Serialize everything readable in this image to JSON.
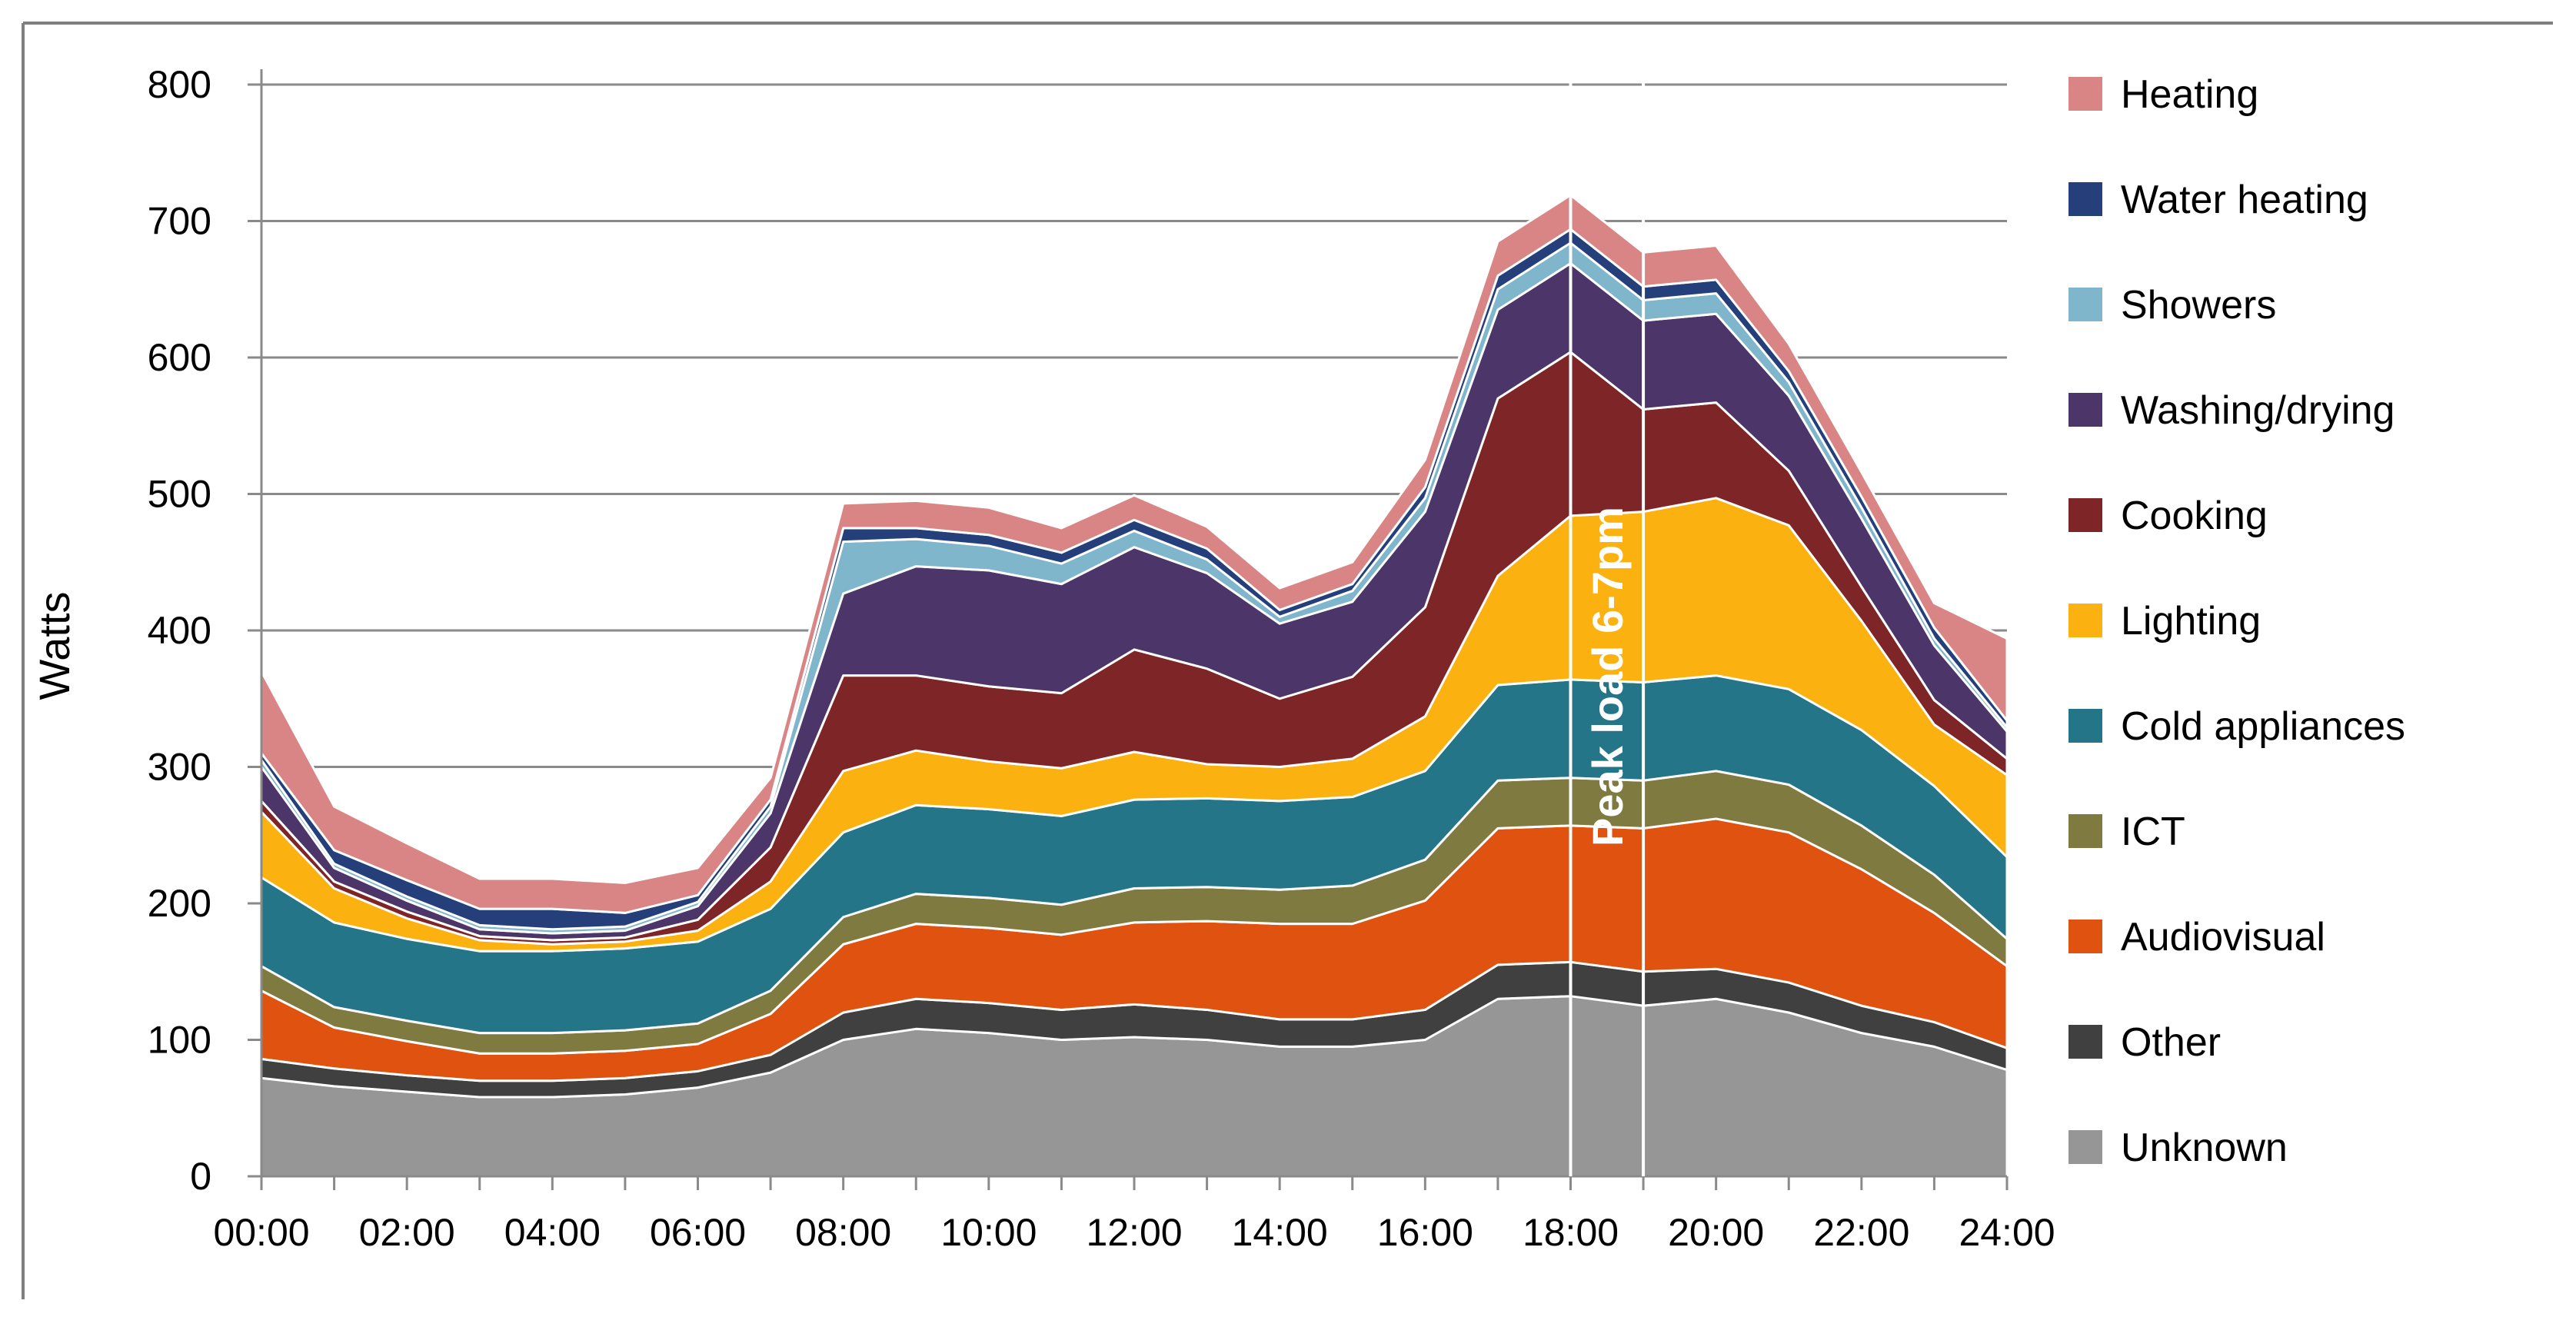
{
  "chart_data": {
    "type": "area",
    "stacked": true,
    "ylabel": "Watts",
    "xlabel": "",
    "ylim": [
      0,
      800
    ],
    "y_ticks": [
      0,
      100,
      200,
      300,
      400,
      500,
      600,
      700,
      800
    ],
    "x_tick_labels": [
      "00:00",
      "02:00",
      "04:00",
      "06:00",
      "08:00",
      "10:00",
      "12:00",
      "14:00",
      "16:00",
      "18:00",
      "20:00",
      "22:00",
      "24:00"
    ],
    "x_hours": [
      0,
      1,
      2,
      3,
      4,
      5,
      6,
      7,
      8,
      9,
      10,
      11,
      12,
      13,
      14,
      15,
      16,
      17,
      18,
      19,
      20,
      21,
      22,
      23,
      24
    ],
    "grid": "horizontal",
    "legend_position": "right",
    "annotation": "Peak load 6-7pm",
    "peak_band_hours": [
      18,
      19
    ],
    "series": [
      {
        "name": "Unknown",
        "color": "#969696",
        "values": [
          72,
          66,
          62,
          58,
          58,
          60,
          65,
          76,
          100,
          108,
          105,
          100,
          102,
          100,
          95,
          95,
          100,
          130,
          132,
          125,
          130,
          120,
          105,
          95,
          78
        ]
      },
      {
        "name": "Other",
        "color": "#404040",
        "values": [
          14,
          13,
          12,
          12,
          12,
          12,
          12,
          13,
          20,
          22,
          22,
          22,
          24,
          22,
          20,
          20,
          22,
          25,
          25,
          25,
          22,
          22,
          20,
          18,
          16
        ]
      },
      {
        "name": "Audiovisual",
        "color": "#E0520F",
        "values": [
          50,
          30,
          25,
          20,
          20,
          20,
          20,
          30,
          50,
          55,
          55,
          55,
          60,
          65,
          70,
          70,
          80,
          100,
          100,
          105,
          110,
          110,
          100,
          80,
          60
        ]
      },
      {
        "name": "ICT",
        "color": "#7F7A40",
        "values": [
          18,
          15,
          15,
          15,
          15,
          15,
          15,
          17,
          20,
          22,
          22,
          22,
          25,
          25,
          25,
          28,
          30,
          35,
          35,
          35,
          35,
          35,
          32,
          28,
          20
        ]
      },
      {
        "name": "Cold appliances",
        "color": "#257588",
        "values": [
          65,
          62,
          60,
          60,
          60,
          60,
          60,
          60,
          62,
          65,
          65,
          65,
          65,
          65,
          65,
          65,
          65,
          70,
          72,
          72,
          70,
          70,
          70,
          65,
          60
        ]
      },
      {
        "name": "Lighting",
        "color": "#FBB10F",
        "values": [
          48,
          25,
          15,
          8,
          5,
          5,
          8,
          20,
          45,
          40,
          35,
          35,
          35,
          25,
          25,
          28,
          40,
          80,
          120,
          125,
          130,
          120,
          80,
          45,
          60
        ]
      },
      {
        "name": "Cooking",
        "color": "#7E2527",
        "values": [
          8,
          5,
          5,
          3,
          3,
          3,
          8,
          25,
          70,
          55,
          55,
          55,
          75,
          70,
          50,
          60,
          80,
          130,
          120,
          75,
          70,
          40,
          25,
          18,
          12
        ]
      },
      {
        "name": "Washing/drying",
        "color": "#4C3568",
        "values": [
          25,
          10,
          8,
          5,
          5,
          5,
          10,
          25,
          60,
          80,
          85,
          80,
          75,
          70,
          55,
          55,
          70,
          65,
          65,
          65,
          65,
          55,
          50,
          40,
          20
        ]
      },
      {
        "name": "Showers",
        "color": "#7FB6CC",
        "values": [
          5,
          3,
          3,
          3,
          3,
          3,
          3,
          5,
          38,
          20,
          18,
          15,
          12,
          10,
          5,
          8,
          10,
          15,
          15,
          15,
          15,
          10,
          8,
          5,
          3
        ]
      },
      {
        "name": "Water heating",
        "color": "#243F7A",
        "values": [
          5,
          10,
          12,
          12,
          15,
          10,
          5,
          5,
          10,
          8,
          8,
          8,
          8,
          8,
          5,
          5,
          8,
          10,
          10,
          10,
          10,
          8,
          8,
          8,
          5
        ]
      },
      {
        "name": "Heating",
        "color": "#D98585",
        "values": [
          60,
          32,
          27,
          22,
          22,
          22,
          20,
          16,
          18,
          20,
          20,
          18,
          18,
          16,
          16,
          16,
          20,
          25,
          25,
          25,
          25,
          20,
          18,
          18,
          60
        ]
      }
    ]
  }
}
